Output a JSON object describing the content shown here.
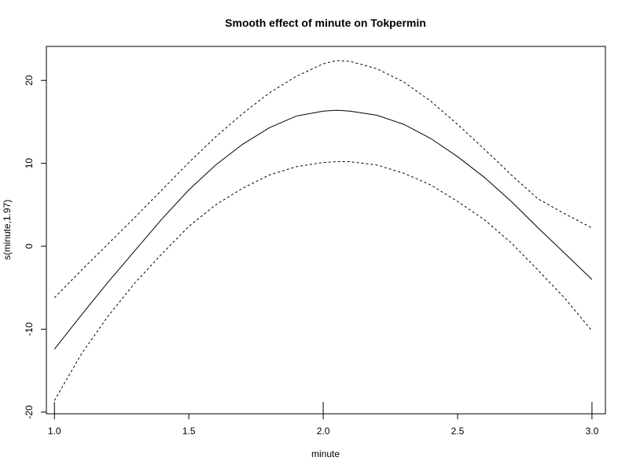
{
  "chart_data": {
    "type": "line",
    "title": "Smooth effect of minute on Tokpermin",
    "xlabel": "minute",
    "ylabel": "s(minute,1.97)",
    "xlim": [
      0.97,
      3.05
    ],
    "ylim": [
      -20.2,
      24.1
    ],
    "x_ticks": [
      1.0,
      1.5,
      2.0,
      2.5,
      3.0
    ],
    "x_tick_labels": [
      "1.0",
      "1.5",
      "2.0",
      "2.5",
      "3.0"
    ],
    "y_ticks": [
      -20,
      -10,
      0,
      10,
      20
    ],
    "y_tick_labels": [
      "-20",
      "-10",
      "0",
      "10",
      "20"
    ],
    "grid": false,
    "legend": "none",
    "rug": [
      1.0,
      2.0,
      3.0
    ],
    "series": [
      {
        "style": "solid",
        "x": [
          1.0,
          1.1,
          1.2,
          1.3,
          1.4,
          1.5,
          1.6,
          1.7,
          1.8,
          1.9,
          2.0,
          2.05,
          2.1,
          2.2,
          2.3,
          2.4,
          2.5,
          2.6,
          2.7,
          2.8,
          2.9,
          3.0
        ],
        "y": [
          -12.4,
          -8.3,
          -4.3,
          -0.5,
          3.3,
          6.8,
          9.8,
          12.3,
          14.3,
          15.7,
          16.3,
          16.4,
          16.3,
          15.8,
          14.7,
          13.0,
          10.8,
          8.3,
          5.4,
          2.2,
          -0.9,
          -4.0
        ]
      },
      {
        "style": "dashed",
        "x": [
          1.0,
          1.1,
          1.2,
          1.3,
          1.4,
          1.5,
          1.6,
          1.7,
          1.8,
          1.9,
          2.0,
          2.05,
          2.1,
          2.2,
          2.3,
          2.4,
          2.5,
          2.6,
          2.7,
          2.8,
          2.9,
          3.0
        ],
        "y": [
          -6.2,
          -2.9,
          0.3,
          3.5,
          6.8,
          10.1,
          13.2,
          16.0,
          18.5,
          20.5,
          22.0,
          22.4,
          22.3,
          21.4,
          19.8,
          17.5,
          14.7,
          11.7,
          8.6,
          5.7,
          3.9,
          2.2
        ]
      },
      {
        "style": "dashed",
        "x": [
          1.0,
          1.1,
          1.2,
          1.3,
          1.4,
          1.5,
          1.6,
          1.7,
          1.8,
          1.9,
          2.0,
          2.05,
          2.1,
          2.2,
          2.3,
          2.4,
          2.5,
          2.6,
          2.7,
          2.8,
          2.9,
          3.0
        ],
        "y": [
          -18.6,
          -13.0,
          -8.4,
          -4.4,
          -0.9,
          2.4,
          5.0,
          7.0,
          8.6,
          9.6,
          10.1,
          10.2,
          10.2,
          9.8,
          8.8,
          7.4,
          5.4,
          3.2,
          0.4,
          -2.9,
          -6.3,
          -10.2
        ]
      }
    ]
  }
}
